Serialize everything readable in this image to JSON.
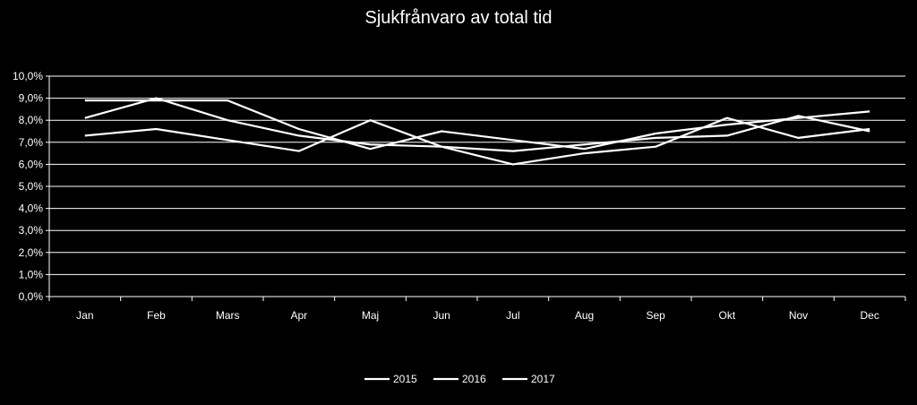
{
  "chart_data": {
    "type": "line",
    "title": "Sjukfrånvaro av total tid",
    "xlabel": "",
    "ylabel": "",
    "categories": [
      "Jan",
      "Feb",
      "Mars",
      "Apr",
      "Maj",
      "Jun",
      "Jul",
      "Aug",
      "Sep",
      "Okt",
      "Nov",
      "Dec"
    ],
    "yticks": [
      "0,0%",
      "1,0%",
      "2,0%",
      "3,0%",
      "4,0%",
      "5,0%",
      "6,0%",
      "7,0%",
      "8,0%",
      "9,0%",
      "10,0%"
    ],
    "ylim": [
      0,
      10
    ],
    "grid": true,
    "legend_position": "bottom",
    "series": [
      {
        "name": "2015",
        "values": [
          8.1,
          9.0,
          8.0,
          7.3,
          6.9,
          6.8,
          6.6,
          6.9,
          7.2,
          7.3,
          8.2,
          7.5
        ]
      },
      {
        "name": "2016",
        "values": [
          7.3,
          7.6,
          7.1,
          6.6,
          8.0,
          6.8,
          6.0,
          6.5,
          6.8,
          8.1,
          7.2,
          7.6
        ]
      },
      {
        "name": "2017",
        "values": [
          8.9,
          8.9,
          8.9,
          7.6,
          6.7,
          7.5,
          7.1,
          6.7,
          7.4,
          7.8,
          8.1,
          8.4
        ]
      }
    ],
    "colors": {
      "background": "#000000",
      "line": "#ffffff",
      "grid": "#ffffff",
      "text": "#ffffff"
    }
  }
}
